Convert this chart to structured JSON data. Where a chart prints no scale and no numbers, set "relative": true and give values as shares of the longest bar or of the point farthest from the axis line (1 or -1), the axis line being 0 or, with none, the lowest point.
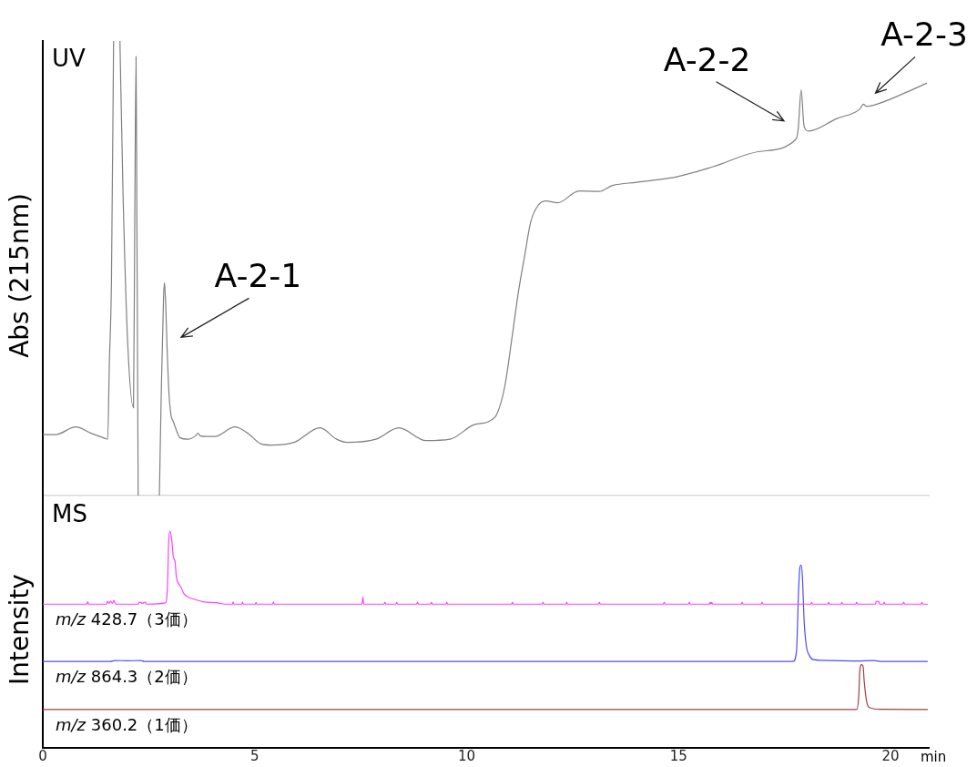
{
  "chart_data": [
    {
      "type": "line",
      "ylabel": "Abs (215nm)",
      "relative": true,
      "xlim": [
        0,
        20.9
      ],
      "tick_labels": false,
      "annotations": [
        "UV",
        {
          "text": "A-2-1",
          "x": 2.93,
          "y": 0.33
        },
        {
          "text": "A-2-2",
          "x": 17.82,
          "y": 0.806
        },
        {
          "text": "A-2-3",
          "x": 19.36,
          "y": 0.861
        }
      ],
      "series": [
        {
          "color": "#808080",
          "x": [
            0,
            0.3,
            0.78,
            1.14,
            1.46,
            1.53,
            1.57,
            1.62,
            1.67,
            1.75,
            1.82,
            1.89,
            2.0,
            2.14,
            2.17,
            2.2,
            2.22,
            2.25,
            2.5,
            2.75,
            2.8,
            2.85,
            2.87,
            2.9,
            2.93,
            2.98,
            3.03,
            3.07,
            3.24,
            3.42,
            3.6,
            3.66,
            3.72,
            3.85,
            4.06,
            4.53,
            4.84,
            5.14,
            5.39,
            5.93,
            6.54,
            6.93,
            7.18,
            7.86,
            8.4,
            9.04,
            9.61,
            10.15,
            10.54,
            10.72,
            10.9,
            11.08,
            11.22,
            11.37,
            11.51,
            11.69,
            11.87,
            12.15,
            12.65,
            13.12,
            13.44,
            14.01,
            14.44,
            14.95,
            15.83,
            16.91,
            17.77,
            17.82,
            17.89,
            17.96,
            18.07,
            18.72,
            19.27,
            19.36,
            19.43,
            19.74,
            20.39,
            20.85
          ],
          "values": [
            0.134,
            0.134,
            0.151,
            0.137,
            0.126,
            0.124,
            0.29,
            0.475,
            1,
            null,
            1,
            0.676,
            0.342,
            0.193,
            0.609,
            0.966,
            0.609,
            0,
            null,
            0,
            0.25,
            0.44,
            0.468,
            0.42,
            0.33,
            0.22,
            0.174,
            0.165,
            0.127,
            0.124,
            0.131,
            0.137,
            0.131,
            0.13,
            0.13,
            0.151,
            0.137,
            0.114,
            0.111,
            0.117,
            0.149,
            0.124,
            0.117,
            0.124,
            0.149,
            0.121,
            0.124,
            0.155,
            0.164,
            0.181,
            0.241,
            0.355,
            0.448,
            0.529,
            0.602,
            0.639,
            0.648,
            0.644,
            0.67,
            0.669,
            0.682,
            0.689,
            0.694,
            0.701,
            0.724,
            0.757,
            0.784,
            0.806,
            0.892,
            0.812,
            0.802,
            0.829,
            0.85,
            0.861,
            0.856,
            0.863,
            0.888,
            0.907
          ]
        }
      ]
    },
    {
      "type": "line",
      "ylabel": "Intensity",
      "xlabel": "min",
      "relative": true,
      "xlim": [
        0,
        20.9
      ],
      "xticks": [
        0,
        5,
        10,
        15,
        20
      ],
      "tick_labels": "x",
      "annotations": [
        "MS"
      ],
      "series": [
        {
          "name": "m/z 428.7（3価）",
          "color": "#ff40ff",
          "x": [
            0,
            1.04,
            1.06,
            1.08,
            1.5,
            1.53,
            1.56,
            1.6,
            1.64,
            1.68,
            1.71,
            2.25,
            2.28,
            2.35,
            2.42,
            2.45,
            2.89,
            2.94,
            2.97,
            3.0,
            3.04,
            3.08,
            3.12,
            3.15,
            3.21,
            3.26,
            3.32,
            3.42,
            3.57,
            3.78,
            4.13,
            4.28,
            4.47,
            4.49,
            4.51,
            4.69,
            4.71,
            4.73,
            5.01,
            5.03,
            5.05,
            5.42,
            5.44,
            5.46,
            7.53,
            7.55,
            7.57,
            8.05,
            8.07,
            8.09,
            8.33,
            8.35,
            8.37,
            8.82,
            8.84,
            8.86,
            9.15,
            9.17,
            9.19,
            9.51,
            9.53,
            9.55,
            11.06,
            11.08,
            11.1,
            11.78,
            11.8,
            11.82,
            12.34,
            12.36,
            12.38,
            13.11,
            13.13,
            13.15,
            14.64,
            14.66,
            14.68,
            15.23,
            15.25,
            15.27,
            15.72,
            15.74,
            15.76,
            15.78,
            15.8,
            16.48,
            16.5,
            16.52,
            16.95,
            16.97,
            16.99,
            18.12,
            18.14,
            18.16,
            18.52,
            18.54,
            18.56,
            18.83,
            18.85,
            18.87,
            19.18,
            19.2,
            19.22,
            19.64,
            19.66,
            19.72,
            19.74,
            19.83,
            19.85,
            19.87,
            20.29,
            20.31,
            20.33,
            20.72,
            20.74,
            20.76,
            20.87
          ],
          "values": [
            0.663,
            0.663,
            0.675,
            0.663,
            0.663,
            0.676,
            0.667,
            0.676,
            0.667,
            0.68,
            0.663,
            0.663,
            0.672,
            0.668,
            0.672,
            0.663,
            0.669,
            0.742,
            0.951,
            1,
            0.965,
            0.881,
            0.86,
            0.791,
            0.755,
            0.742,
            0.714,
            0.697,
            0.686,
            0.674,
            0.669,
            0.663,
            0.663,
            0.673,
            0.663,
            0.663,
            0.673,
            0.663,
            0.663,
            0.671,
            0.663,
            0.663,
            0.673,
            0.663,
            0.663,
            0.695,
            0.663,
            0.663,
            0.672,
            0.663,
            0.663,
            0.672,
            0.663,
            0.663,
            0.672,
            0.663,
            0.663,
            0.672,
            0.663,
            0.663,
            0.672,
            0.663,
            0.663,
            0.672,
            0.663,
            0.663,
            0.672,
            0.663,
            0.663,
            0.672,
            0.663,
            0.663,
            0.672,
            0.663,
            0.663,
            0.672,
            0.663,
            0.663,
            0.672,
            0.663,
            0.663,
            0.672,
            0.663,
            0.672,
            0.663,
            0.663,
            0.672,
            0.663,
            0.663,
            0.672,
            0.663,
            0.663,
            0.672,
            0.663,
            0.663,
            0.672,
            0.663,
            0.663,
            0.672,
            0.663,
            0.663,
            0.672,
            0.663,
            0.663,
            0.675,
            0.675,
            0.663,
            0.663,
            0.672,
            0.663,
            0.663,
            0.672,
            0.663,
            0.663,
            0.672,
            0.663,
            0.663
          ]
        },
        {
          "name": "m/z 864.3（2価）",
          "color": "#4d4dff",
          "x": [
            0,
            1.6,
            1.7,
            2.0,
            2.3,
            2.4,
            17.7,
            17.78,
            17.83,
            17.86,
            17.89,
            17.92,
            17.96,
            18.01,
            18.09,
            18.18,
            18.62,
            19.2,
            19.6,
            19.77,
            20.87
          ],
          "values": [
            0.399,
            0.399,
            0.403,
            0.402,
            0.403,
            0.399,
            0.399,
            0.446,
            0.731,
            0.832,
            0.843,
            0.789,
            0.589,
            0.474,
            0.424,
            0.407,
            0.403,
            0.401,
            0.403,
            0.399,
            0.399
          ]
        },
        {
          "name": "m/z 360.2（1価）",
          "color": "#a04040",
          "x": [
            0,
            19.2,
            19.25,
            19.27,
            19.31,
            19.35,
            19.38,
            19.44,
            19.53,
            19.77,
            20.87
          ],
          "values": [
            0.177,
            0.177,
            0.245,
            0.346,
            0.384,
            0.377,
            0.302,
            0.209,
            0.184,
            0.178,
            0.177
          ]
        }
      ]
    }
  ]
}
